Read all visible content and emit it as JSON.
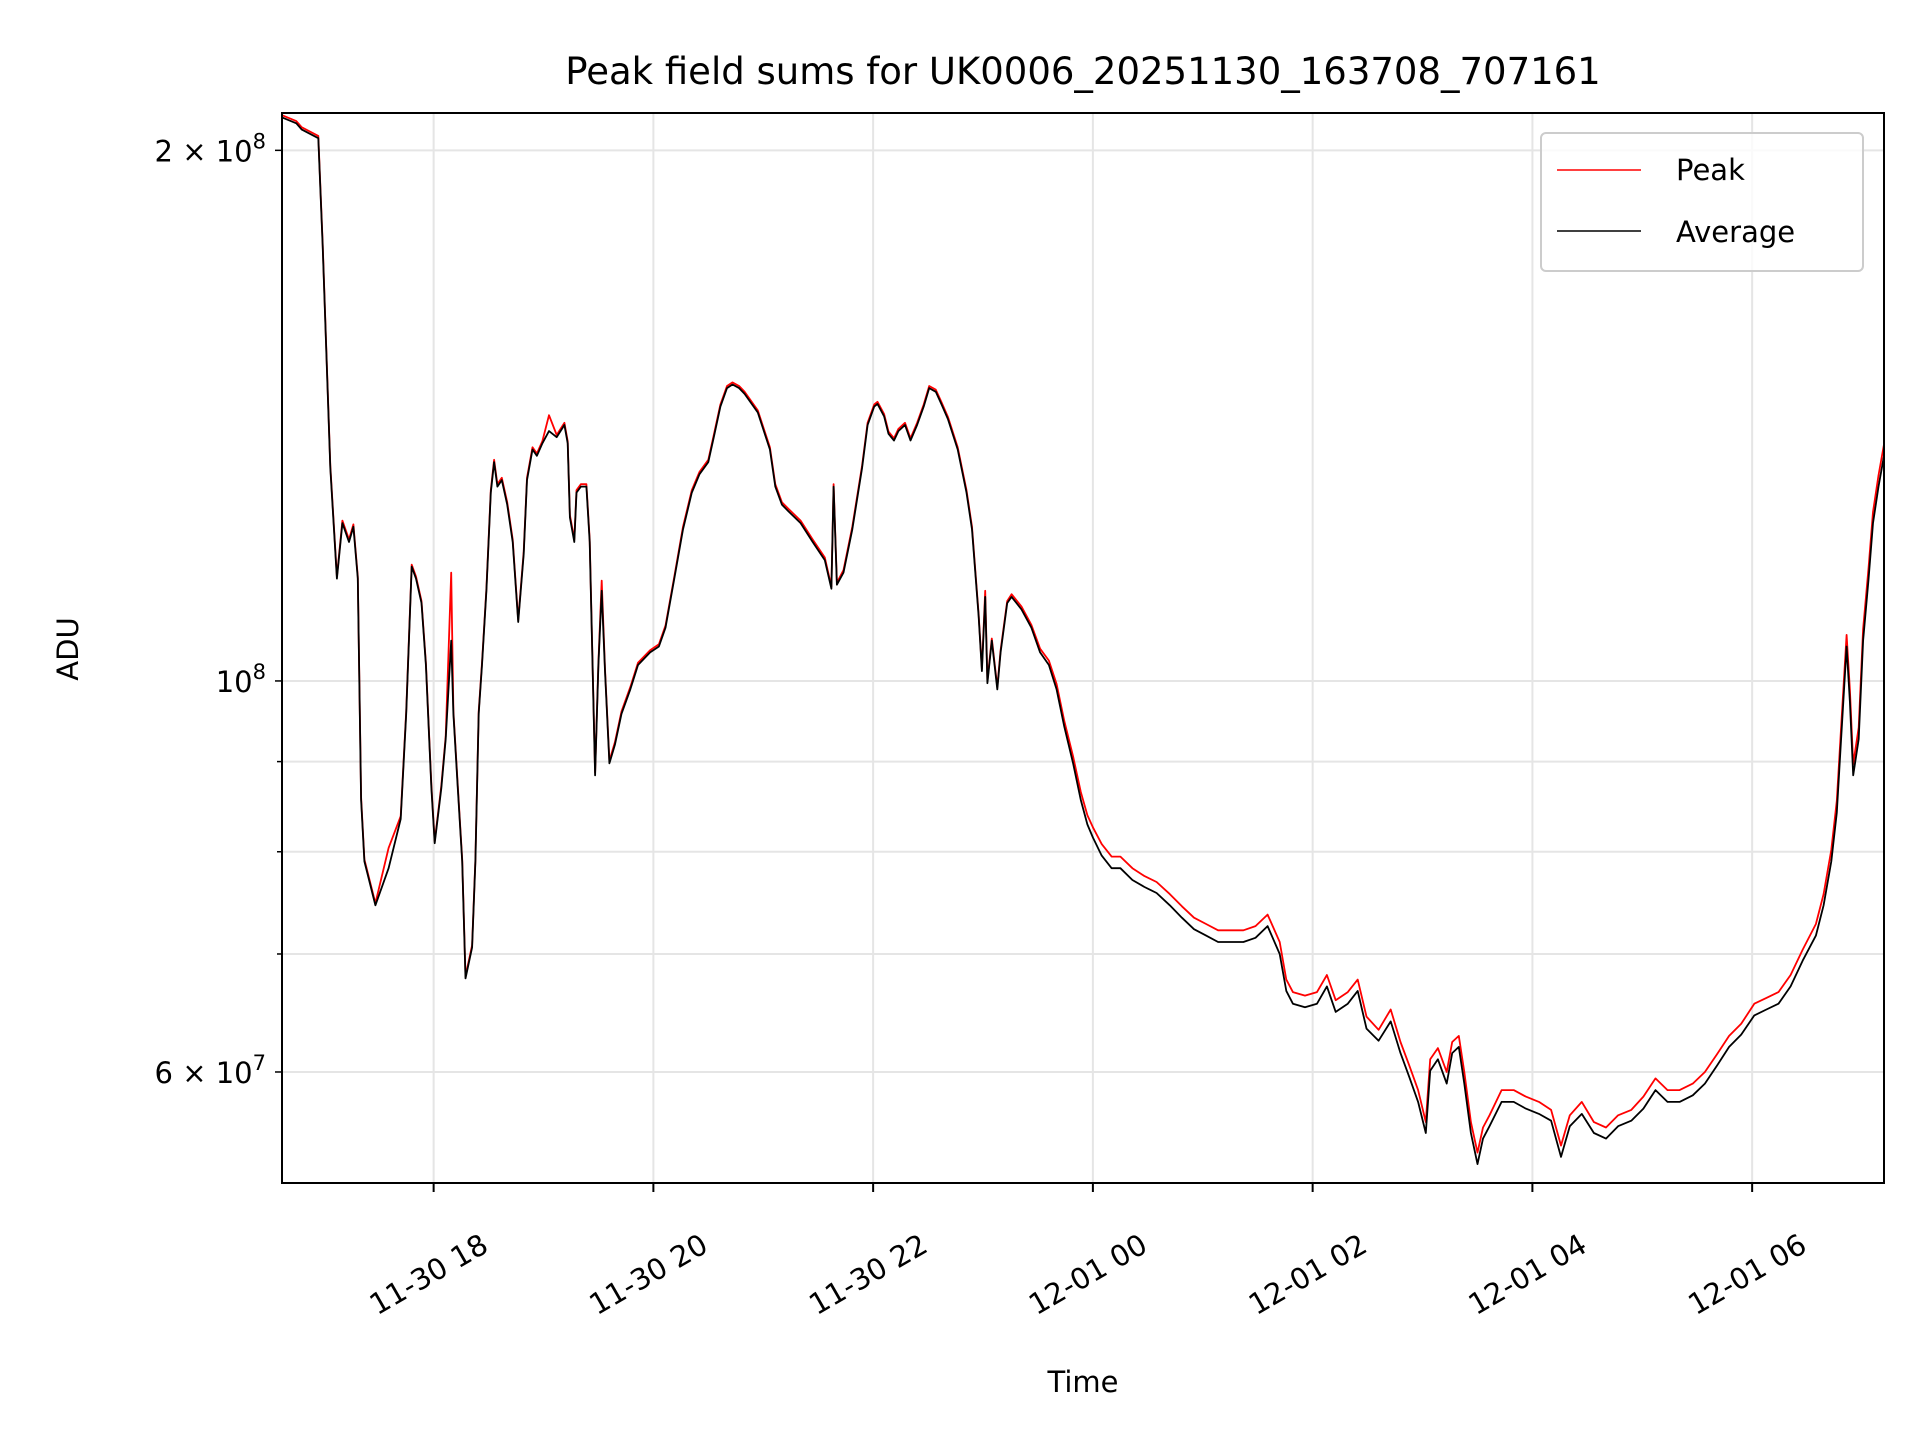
{
  "chart_data": {
    "type": "line",
    "title": "Peak field sums for UK0006_20251130_163708_707161",
    "xlabel": "Time",
    "ylabel": "ADU",
    "yscale": "log",
    "xlim_hours_since_2025_11_30_0000": [
      16.62,
      31.2
    ],
    "ylim": [
      51900000.0,
      210000000.0
    ],
    "grid": true,
    "legend": {
      "placement": "upper right",
      "entries": [
        "Peak",
        "Average"
      ]
    },
    "x_ticks": [
      {
        "hours": 18,
        "label": "11-30 18"
      },
      {
        "hours": 20,
        "label": "11-30 20"
      },
      {
        "hours": 22,
        "label": "11-30 22"
      },
      {
        "hours": 24,
        "label": "12-01 00"
      },
      {
        "hours": 26,
        "label": "12-01 02"
      },
      {
        "hours": 28,
        "label": "12-01 04"
      },
      {
        "hours": 30,
        "label": "12-01 06"
      }
    ],
    "y_ticks": [
      {
        "value": 200000000.0,
        "mantissa": "2",
        "times": " × 10",
        "exp": "8"
      },
      {
        "value": 100000000.0,
        "mantissa": "",
        "times": "10",
        "exp": "8"
      },
      {
        "value": 60000000.0,
        "mantissa": "6",
        "times": " × 10",
        "exp": "7"
      }
    ],
    "y_minor_grid": [
      70000000.0,
      80000000.0,
      90000000.0
    ],
    "series": [
      {
        "name": "Peak",
        "color": "#ff0000"
      },
      {
        "name": "Average",
        "color": "#000000"
      }
    ],
    "points_hour_peak_average": [
      [
        16.62,
        209400000.0,
        208800000.0
      ],
      [
        16.75,
        207800000.0,
        207200000.0
      ],
      [
        16.8,
        206100000.0,
        205500000.0
      ],
      [
        16.95,
        203800000.0,
        203200000.0
      ],
      [
        16.99,
        176900000.0,
        176400000.0
      ],
      [
        17.06,
        132500000.0,
        132100000.0
      ],
      [
        17.12,
        114600000.0,
        114300000.0
      ],
      [
        17.17,
        123300000.0,
        122900000.0
      ],
      [
        17.23,
        120300000.0,
        119900000.0
      ],
      [
        17.27,
        122700000.0,
        122300000.0
      ],
      [
        17.31,
        114600000.0,
        114300000.0
      ],
      [
        17.34,
        85900000.0,
        85600000.0
      ],
      [
        17.37,
        79200000.0,
        79000000.0
      ],
      [
        17.47,
        74800000.0,
        74600000.0
      ],
      [
        17.59,
        80400000.0,
        78300000.0
      ],
      [
        17.7,
        83800000.0,
        83500000.0
      ],
      [
        17.75,
        96100000.0,
        95800000.0
      ],
      [
        17.8,
        116400000.0,
        116100000.0
      ],
      [
        17.84,
        114600000.0,
        114300000.0
      ],
      [
        17.89,
        111000000.0,
        110700000.0
      ],
      [
        17.93,
        102400000.0,
        102100000.0
      ],
      [
        17.98,
        87200000.0,
        86900000.0
      ],
      [
        18.01,
        81100000.0,
        80900000.0
      ],
      [
        18.07,
        87200000.0,
        86900000.0
      ],
      [
        18.11,
        93000000.0,
        92700000.0
      ],
      [
        18.16,
        115200000.0,
        105400000.0
      ],
      [
        18.18,
        96100000.0,
        95800000.0
      ],
      [
        18.22,
        87200000.0,
        86900000.0
      ],
      [
        18.26,
        79200000.0,
        79000000.0
      ],
      [
        18.29,
        68000000.0,
        67800000.0
      ],
      [
        18.35,
        70800000.0,
        70600000.0
      ],
      [
        18.38,
        79200000.0,
        79000000.0
      ],
      [
        18.41,
        96100000.0,
        95800000.0
      ],
      [
        18.44,
        102400000.0,
        102100000.0
      ],
      [
        18.48,
        112800000.0,
        112500000.0
      ],
      [
        18.52,
        128300000.0,
        127900000.0
      ],
      [
        18.55,
        133500000.0,
        133100000.0
      ],
      [
        18.58,
        129300000.0,
        128900000.0
      ],
      [
        18.62,
        130400000.0,
        130000000.0
      ],
      [
        18.67,
        126300000.0,
        125900000.0
      ],
      [
        18.72,
        120300000.0,
        119900000.0
      ],
      [
        18.77,
        108300000.0,
        108000000.0
      ],
      [
        18.82,
        118400000.0,
        118000000.0
      ],
      [
        18.85,
        130400000.0,
        130000000.0
      ],
      [
        18.9,
        135700000.0,
        135300000.0
      ],
      [
        18.94,
        134600000.0,
        134200000.0
      ],
      [
        18.99,
        136800000.0,
        136400000.0
      ],
      [
        19.05,
        141500000.0,
        138600000.0
      ],
      [
        19.12,
        137900000.0,
        137500000.0
      ],
      [
        19.19,
        140100000.0,
        139700000.0
      ],
      [
        19.22,
        136800000.0,
        136400000.0
      ],
      [
        19.24,
        124200000.0,
        123800000.0
      ],
      [
        19.28,
        120300000.0,
        119900000.0
      ],
      [
        19.3,
        128300000.0,
        127900000.0
      ],
      [
        19.34,
        129300000.0,
        128900000.0
      ],
      [
        19.39,
        129300000.0,
        128900000.0
      ],
      [
        19.42,
        120300000.0,
        119900000.0
      ],
      [
        19.47,
        88700000.0,
        88400000.0
      ],
      [
        19.5,
        102400000.0,
        102100000.0
      ],
      [
        19.53,
        114000000.0,
        112500000.0
      ],
      [
        19.56,
        101600000.0,
        101300000.0
      ],
      [
        19.6,
        90100000.0,
        89800000.0
      ],
      [
        19.65,
        92300000.0,
        92000000.0
      ],
      [
        19.71,
        96100000.0,
        95800000.0
      ],
      [
        19.79,
        99200000.0,
        98900000.0
      ],
      [
        19.86,
        102400000.0,
        102100000.0
      ],
      [
        19.97,
        104100000.0,
        103800000.0
      ],
      [
        20.05,
        104900000.0,
        104600000.0
      ],
      [
        20.11,
        107500000.0,
        107200000.0
      ],
      [
        20.19,
        114600000.0,
        114300000.0
      ],
      [
        20.27,
        122300000.0,
        121900000.0
      ],
      [
        20.35,
        128300000.0,
        127900000.0
      ],
      [
        20.42,
        131400000.0,
        131000000.0
      ],
      [
        20.5,
        133500000.0,
        133100000.0
      ],
      [
        20.55,
        137900000.0,
        137500000.0
      ],
      [
        20.61,
        143500000.0,
        143100000.0
      ],
      [
        20.67,
        147000000.0,
        146600000.0
      ],
      [
        20.72,
        147700000.0,
        147300000.0
      ],
      [
        20.78,
        147000000.0,
        146600000.0
      ],
      [
        20.83,
        145900000.0,
        145500000.0
      ],
      [
        20.95,
        142400000.0,
        142000000.0
      ],
      [
        21.06,
        135700000.0,
        135300000.0
      ],
      [
        21.11,
        129300000.0,
        128900000.0
      ],
      [
        21.17,
        126300000.0,
        125900000.0
      ],
      [
        21.23,
        125200000.0,
        124800000.0
      ],
      [
        21.34,
        123300000.0,
        122900000.0
      ],
      [
        21.45,
        120300000.0,
        119900000.0
      ],
      [
        21.56,
        117500000.0,
        117100000.0
      ],
      [
        21.62,
        113100000.0,
        112800000.0
      ],
      [
        21.64,
        129300000.0,
        128900000.0
      ],
      [
        21.67,
        113700000.0,
        113400000.0
      ],
      [
        21.73,
        115600000.0,
        115200000.0
      ],
      [
        21.81,
        122300000.0,
        121900000.0
      ],
      [
        21.9,
        132500000.0,
        132100000.0
      ],
      [
        21.95,
        140100000.0,
        139700000.0
      ],
      [
        22.01,
        143500000.0,
        143100000.0
      ],
      [
        22.04,
        144000000.0,
        143600000.0
      ],
      [
        22.1,
        141700000.0,
        141300000.0
      ],
      [
        22.14,
        138500000.0,
        138100000.0
      ],
      [
        22.19,
        137300000.0,
        136900000.0
      ],
      [
        22.23,
        139000000.0,
        138600000.0
      ],
      [
        22.29,
        140100000.0,
        139700000.0
      ],
      [
        22.34,
        137300000.0,
        136900000.0
      ],
      [
        22.4,
        140100000.0,
        139700000.0
      ],
      [
        22.46,
        143500000.0,
        143100000.0
      ],
      [
        22.51,
        147000000.0,
        146600000.0
      ],
      [
        22.57,
        146300000.0,
        145900000.0
      ],
      [
        22.62,
        144000000.0,
        143600000.0
      ],
      [
        22.68,
        141200000.0,
        140800000.0
      ],
      [
        22.77,
        135700000.0,
        135300000.0
      ],
      [
        22.85,
        128300000.0,
        127900000.0
      ],
      [
        22.9,
        122300000.0,
        121900000.0
      ],
      [
        22.96,
        109200000.0,
        108900000.0
      ],
      [
        22.99,
        101600000.0,
        101300000.0
      ],
      [
        23.02,
        112500000.0,
        111600000.0
      ],
      [
        23.04,
        100000000.0,
        99700000.0
      ],
      [
        23.08,
        105700000.0,
        105400000.0
      ],
      [
        23.13,
        99200000.0,
        98900000.0
      ],
      [
        23.16,
        104100000.0,
        103800000.0
      ],
      [
        23.22,
        111000000.0,
        110700000.0
      ],
      [
        23.26,
        112000000.0,
        111600000.0
      ],
      [
        23.35,
        110200000.0,
        109800000.0
      ],
      [
        23.44,
        107600000.0,
        107200000.0
      ],
      [
        23.52,
        104300000.0,
        103800000.0
      ],
      [
        23.6,
        102700000.0,
        102100000.0
      ],
      [
        23.67,
        99600000.0,
        98900000.0
      ],
      [
        23.74,
        94900000.0,
        94200000.0
      ],
      [
        23.82,
        90600000.0,
        89800000.0
      ],
      [
        23.89,
        86500000.0,
        85600000.0
      ],
      [
        23.95,
        83900000.0,
        82900000.0
      ],
      [
        24.0,
        82600000.0,
        81500000.0
      ],
      [
        24.08,
        80800000.0,
        79600000.0
      ],
      [
        24.17,
        79500000.0,
        78300000.0
      ],
      [
        24.25,
        79500000.0,
        78300000.0
      ],
      [
        24.36,
        78300000.0,
        77100000.0
      ],
      [
        24.47,
        77500000.0,
        76400000.0
      ],
      [
        24.58,
        76900000.0,
        75800000.0
      ],
      [
        24.7,
        75700000.0,
        74600000.0
      ],
      [
        24.81,
        74500000.0,
        73400000.0
      ],
      [
        24.92,
        73400000.0,
        72300000.0
      ],
      [
        25.03,
        72800000.0,
        71700000.0
      ],
      [
        25.14,
        72200000.0,
        71100000.0
      ],
      [
        25.26,
        72200000.0,
        71100000.0
      ],
      [
        25.37,
        72200000.0,
        71100000.0
      ],
      [
        25.48,
        72600000.0,
        71500000.0
      ],
      [
        25.59,
        73700000.0,
        72600000.0
      ],
      [
        25.7,
        71100000.0,
        70000000.0
      ],
      [
        25.76,
        67700000.0,
        66700000.0
      ],
      [
        25.82,
        66600000.0,
        65600000.0
      ],
      [
        25.93,
        66300000.0,
        65300000.0
      ],
      [
        26.04,
        66600000.0,
        65600000.0
      ],
      [
        26.13,
        68100000.0,
        67100000.0
      ],
      [
        26.21,
        65900000.0,
        64900000.0
      ],
      [
        26.32,
        66600000.0,
        65600000.0
      ],
      [
        26.41,
        67700000.0,
        66700000.0
      ],
      [
        26.49,
        64500000.0,
        63500000.0
      ],
      [
        26.6,
        63400000.0,
        62500000.0
      ],
      [
        26.71,
        65100000.0,
        64100000.0
      ],
      [
        26.8,
        62400000.0,
        61500000.0
      ],
      [
        26.88,
        60500000.0,
        59600000.0
      ],
      [
        26.96,
        58600000.0,
        57700000.0
      ],
      [
        27.03,
        56200000.0,
        55400000.0
      ],
      [
        27.07,
        61000000.0,
        60100000.0
      ],
      [
        27.14,
        61900000.0,
        61000000.0
      ],
      [
        27.22,
        60000000.0,
        59100000.0
      ],
      [
        27.27,
        62400000.0,
        61500000.0
      ],
      [
        27.33,
        62900000.0,
        62000000.0
      ],
      [
        27.38,
        60000000.0,
        59100000.0
      ],
      [
        27.44,
        56200000.0,
        55400000.0
      ],
      [
        27.5,
        54000000.0,
        53200000.0
      ],
      [
        27.55,
        55800000.0,
        55000000.0
      ],
      [
        27.61,
        56700000.0,
        55900000.0
      ],
      [
        27.72,
        58600000.0,
        57700000.0
      ],
      [
        27.83,
        58600000.0,
        57700000.0
      ],
      [
        27.94,
        58100000.0,
        57200000.0
      ],
      [
        28.06,
        57700000.0,
        56800000.0
      ],
      [
        28.17,
        57100000.0,
        56300000.0
      ],
      [
        28.26,
        54500000.0,
        53700000.0
      ],
      [
        28.34,
        56700000.0,
        55900000.0
      ],
      [
        28.45,
        57700000.0,
        56800000.0
      ],
      [
        28.56,
        56200000.0,
        55400000.0
      ],
      [
        28.67,
        55800000.0,
        55000000.0
      ],
      [
        28.78,
        56700000.0,
        55900000.0
      ],
      [
        28.9,
        57100000.0,
        56300000.0
      ],
      [
        29.01,
        58100000.0,
        57200000.0
      ],
      [
        29.12,
        59500000.0,
        58600000.0
      ],
      [
        29.23,
        58600000.0,
        57700000.0
      ],
      [
        29.34,
        58600000.0,
        57700000.0
      ],
      [
        29.46,
        59100000.0,
        58200000.0
      ],
      [
        29.57,
        60000000.0,
        59100000.0
      ],
      [
        29.68,
        61400000.0,
        60500000.0
      ],
      [
        29.79,
        62900000.0,
        62000000.0
      ],
      [
        29.9,
        63900000.0,
        63000000.0
      ],
      [
        30.02,
        65600000.0,
        64600000.0
      ],
      [
        30.13,
        66100000.0,
        65100000.0
      ],
      [
        30.24,
        66600000.0,
        65600000.0
      ],
      [
        30.35,
        68100000.0,
        67100000.0
      ],
      [
        30.46,
        70400000.0,
        69400000.0
      ],
      [
        30.58,
        72800000.0,
        71700000.0
      ],
      [
        30.65,
        75700000.0,
        74600000.0
      ],
      [
        30.72,
        80200000.0,
        79000000.0
      ],
      [
        30.77,
        85500000.0,
        84200000.0
      ],
      [
        30.81,
        94100000.0,
        92700000.0
      ],
      [
        30.86,
        106200000.0,
        104600000.0
      ],
      [
        30.89,
        98800000.0,
        97300000.0
      ],
      [
        30.92,
        89700000.0,
        88400000.0
      ],
      [
        30.97,
        94100000.0,
        92700000.0
      ],
      [
        31.01,
        107000000.0,
        105400000.0
      ],
      [
        31.06,
        116000000.0,
        114300000.0
      ],
      [
        31.1,
        124700000.0,
        122900000.0
      ],
      [
        31.15,
        130800000.0,
        128900000.0
      ],
      [
        31.2,
        136200000.0,
        134200000.0
      ]
    ]
  }
}
